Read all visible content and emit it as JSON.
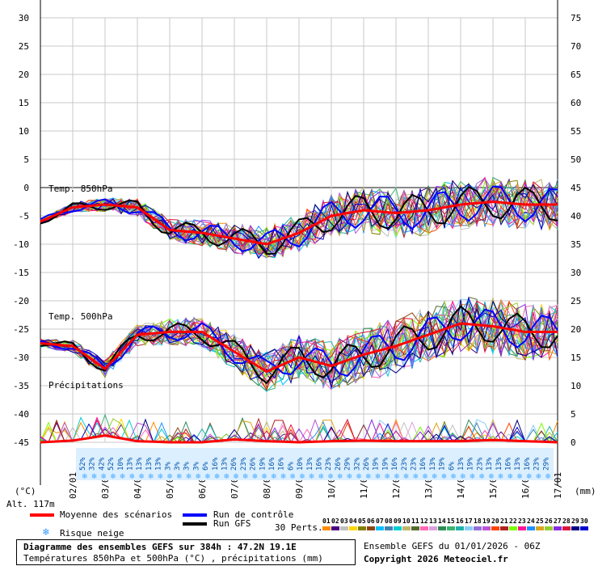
{
  "chart_data": {
    "type": "line",
    "title": "Diagramme des ensembles GEFS sur 384h : 47.2N 19.1E",
    "subtitle": "Températures 850hPa et 500hPa (°C) , précipitations (mm)",
    "left_axis": {
      "unit": "(°C)",
      "ticks": [
        30,
        25,
        20,
        15,
        10,
        5,
        0,
        -5,
        -10,
        -15,
        -20,
        -25,
        -30,
        -35,
        -40,
        -45
      ]
    },
    "right_axis": {
      "unit": "(mm)",
      "ticks": [
        75,
        70,
        65,
        60,
        55,
        50,
        45,
        40,
        35,
        30,
        25,
        20,
        15,
        10,
        5,
        0
      ]
    },
    "x_dates": [
      "02/01",
      "03/01",
      "04/01",
      "05/01",
      "06/01",
      "07/01",
      "08/01",
      "09/01",
      "10/01",
      "11/01",
      "12/01",
      "13/01",
      "14/01",
      "15/01",
      "16/01",
      "17/01"
    ],
    "panel_labels": {
      "t850": "Temp. 850hPa",
      "t500": "Temp. 500hPa",
      "precip": "Précipitations"
    },
    "altitude": "Alt. 117m",
    "snow_risk_pct": [
      "52%",
      "32%",
      "42%",
      "52%",
      "10%",
      "13%",
      "13%",
      "13%",
      "13%",
      "3%",
      "3%",
      "3%",
      "3%",
      "6%",
      "16%",
      "13%",
      "26%",
      "23%",
      "26%",
      "19%",
      "16%",
      "16%",
      "6%",
      "10%",
      "13%",
      "16%",
      "23%",
      "26%",
      "29%",
      "32%",
      "26%",
      "19%",
      "19%",
      "16%",
      "23%",
      "23%",
      "16%",
      "13%",
      "19%",
      "6%",
      "13%",
      "19%",
      "23%",
      "13%",
      "13%",
      "16%",
      "13%",
      "16%",
      "23%",
      "29%"
    ],
    "series": [
      {
        "name": "Moyenne des scénarios",
        "color": "#ff0000"
      },
      {
        "name": "Run de contrôle",
        "color": "#0000ff"
      },
      {
        "name": "Run GFS",
        "color": "#000000"
      }
    ],
    "t850_mean": [
      -6,
      -3.5,
      -3,
      -3.5,
      -7.5,
      -8,
      -9,
      -10,
      -8,
      -5,
      -4,
      -4.5,
      -4,
      -3,
      -2.5,
      -3,
      -3
    ],
    "t500_mean": [
      -27.5,
      -28,
      -32,
      -26,
      -25.5,
      -25.5,
      -29,
      -32.5,
      -30,
      -31.5,
      -29.5,
      -28,
      -26,
      -24,
      -24.5,
      -25.5,
      -25.5
    ],
    "precip_mean_mm": [
      0,
      0.3,
      1.2,
      0.2,
      0,
      0,
      0.5,
      0.2,
      0,
      0.2,
      0.3,
      0.2,
      0.2,
      0.2,
      0.4,
      0.2,
      0
    ],
    "perts_label": "30 Perts.",
    "pert_ids": [
      "01",
      "02",
      "03",
      "04",
      "05",
      "06",
      "07",
      "08",
      "09",
      "10",
      "11",
      "12",
      "13",
      "14",
      "15",
      "16",
      "17",
      "18",
      "19",
      "20",
      "21",
      "22",
      "23",
      "24",
      "25",
      "26",
      "27",
      "28",
      "29",
      "30"
    ],
    "pert_colors": [
      "#ff8c00",
      "#4b0082",
      "#c0c0c0",
      "#ffd700",
      "#808000",
      "#8b4513",
      "#00bfff",
      "#4682b4",
      "#00ced1",
      "#bdb76b",
      "#556b2f",
      "#ff69b4",
      "#dda0dd",
      "#2e8b57",
      "#3cb371",
      "#20b2aa",
      "#87cefa",
      "#9370db",
      "#ba55d3",
      "#ff4500",
      "#b22222",
      "#7cfc00",
      "#ff1493",
      "#1e90ff",
      "#daa520",
      "#9acd32",
      "#8a2be2",
      "#dc143c",
      "#000080",
      "#0000cd"
    ]
  },
  "legend": {
    "mean_label": "Moyenne des scénarios",
    "control_label": "Run de contrôle",
    "gfs_label": "Run GFS",
    "snow_label": "Risque neige",
    "snow_icon": "❄"
  },
  "info": {
    "ensemble": "Ensemble GEFS du 01/01/2026 - 06Z",
    "copyright": "Copyright 2026 Meteociel.fr"
  }
}
